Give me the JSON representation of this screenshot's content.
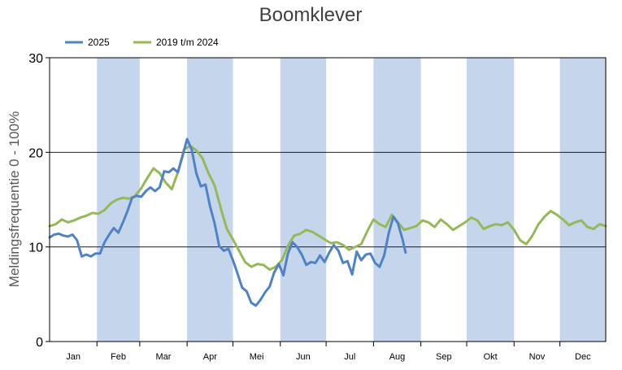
{
  "chart_data": {
    "type": "line",
    "title": "Boomklever",
    "xlabel": "",
    "ylabel": "Meldingsfrequentie 0 - 100%",
    "ylim": [
      0,
      30
    ],
    "yticks": [
      0,
      10,
      20,
      30
    ],
    "xlim": [
      1,
      365
    ],
    "months": [
      "Jan",
      "Feb",
      "Mar",
      "Apr",
      "Mei",
      "Jun",
      "Jul",
      "Aug",
      "Sep",
      "Okt",
      "Nov",
      "Dec"
    ],
    "grid": true,
    "legend_position": "top-left",
    "colors": {
      "band": "#c5d6ec",
      "grid": "#000000"
    },
    "series": [
      {
        "name": "2025",
        "color": "#4f82c6",
        "x": [
          1,
          4,
          7,
          10,
          13,
          16,
          19,
          22,
          25,
          28,
          31,
          34,
          37,
          40,
          43,
          46,
          49,
          52,
          55,
          58,
          61,
          64,
          67,
          70,
          73,
          76,
          79,
          82,
          85,
          88,
          91,
          94,
          97,
          100,
          103,
          106,
          109,
          112,
          115,
          118,
          121,
          124,
          127,
          130,
          133,
          136,
          139,
          142,
          145,
          148,
          151,
          154,
          157,
          160,
          163,
          166,
          169,
          172,
          175,
          178,
          181,
          184,
          187,
          190,
          193,
          196,
          199,
          202,
          205,
          208,
          211,
          214,
          217,
          220,
          223,
          226,
          229,
          232,
          234
        ],
        "y": [
          11.0,
          11.3,
          11.4,
          11.2,
          11.1,
          11.3,
          10.7,
          9.0,
          9.2,
          9.0,
          9.3,
          9.3,
          10.5,
          11.3,
          12.0,
          11.5,
          12.6,
          13.8,
          15.2,
          15.4,
          15.3,
          15.9,
          16.3,
          15.9,
          16.3,
          18.0,
          17.9,
          18.3,
          17.9,
          19.6,
          21.4,
          20.3,
          17.8,
          16.4,
          16.6,
          14.3,
          12.5,
          10.1,
          9.6,
          9.8,
          8.6,
          7.2,
          5.7,
          5.3,
          4.1,
          3.8,
          4.4,
          5.2,
          5.8,
          7.3,
          8.2,
          7.0,
          9.3,
          10.5,
          10.0,
          9.2,
          8.1,
          8.4,
          8.3,
          9.1,
          8.4,
          9.4,
          10.2,
          9.6,
          8.3,
          8.5,
          7.1,
          9.5,
          8.6,
          9.2,
          9.3,
          8.3,
          7.9,
          9.1,
          11.5,
          13.2,
          12.5,
          10.8,
          9.4
        ]
      },
      {
        "name": "2019 t/m 2024",
        "color": "#96b957",
        "x": [
          1,
          5,
          9,
          13,
          17,
          21,
          25,
          29,
          33,
          37,
          41,
          45,
          49,
          53,
          57,
          61,
          65,
          69,
          73,
          77,
          81,
          85,
          89,
          93,
          97,
          101,
          105,
          109,
          113,
          117,
          121,
          125,
          129,
          133,
          137,
          141,
          145,
          149,
          153,
          157,
          161,
          165,
          169,
          173,
          177,
          181,
          185,
          189,
          193,
          197,
          201,
          205,
          209,
          213,
          217,
          221,
          225,
          229,
          233,
          237,
          241,
          245,
          249,
          253,
          257,
          261,
          265,
          269,
          273,
          277,
          281,
          285,
          289,
          293,
          297,
          301,
          305,
          309,
          313,
          317,
          321,
          325,
          329,
          333,
          337,
          341,
          345,
          349,
          353,
          357,
          361,
          365
        ],
        "y": [
          12.2,
          12.4,
          12.9,
          12.6,
          12.8,
          13.1,
          13.3,
          13.6,
          13.5,
          13.9,
          14.6,
          15.0,
          15.2,
          15.1,
          15.4,
          16.2,
          17.3,
          18.3,
          17.8,
          16.8,
          16.1,
          17.9,
          20.3,
          20.7,
          20.2,
          19.4,
          17.8,
          16.5,
          14.1,
          11.9,
          10.8,
          9.6,
          8.4,
          7.9,
          8.2,
          8.1,
          7.6,
          7.9,
          8.6,
          10.1,
          11.2,
          11.4,
          11.8,
          11.6,
          11.2,
          10.8,
          10.4,
          10.5,
          10.2,
          9.7,
          10.0,
          10.3,
          11.7,
          12.9,
          12.4,
          12.1,
          13.4,
          12.6,
          11.8,
          12.0,
          12.2,
          12.8,
          12.6,
          12.1,
          12.9,
          12.4,
          11.8,
          12.2,
          12.6,
          13.1,
          12.8,
          11.9,
          12.2,
          12.4,
          12.3,
          12.6,
          11.8,
          10.7,
          10.3,
          11.2,
          12.4,
          13.2,
          13.8,
          13.4,
          12.9,
          12.3,
          12.6,
          12.8,
          12.1,
          11.9,
          12.4,
          12.2
        ]
      }
    ]
  }
}
